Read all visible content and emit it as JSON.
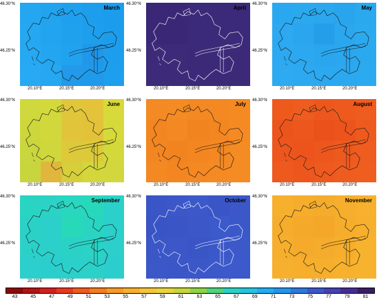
{
  "panels": [
    {
      "month": "March",
      "lat_labels": [
        "46.30°N",
        "46.25°N"
      ],
      "lon_labels": [
        "20.10°E",
        "20.15°E",
        "20.20°E"
      ],
      "base_color": "#22a5f0",
      "grid": [
        [
          "#24a6f1",
          "#22a3ef",
          "#1fa0ee",
          "#1d9eed",
          "#1b9cec"
        ],
        [
          "#25a8f2",
          "#23a4f0",
          "#20a1ee",
          "#1e9fed",
          "#1c9dec"
        ],
        [
          "#26a9f2",
          "#24a5f0",
          "#21a2ef",
          "#2097e8",
          "#1d9eed"
        ],
        [
          "#27aaf3",
          "#25a7f1",
          "#2299e9",
          "#1f9aea",
          "#1e9fee"
        ]
      ]
    },
    {
      "month": "April",
      "lat_labels": [
        "46.30°N",
        "46.25°N"
      ],
      "lon_labels": [
        "20.10°E",
        "20.15°E",
        "20.20°E"
      ],
      "base_color": "#3b2a78",
      "grid": [
        [
          "#3a2877",
          "#3a2877",
          "#3b2a79",
          "#3b2a79",
          "#3b2a79"
        ],
        [
          "#3a2877",
          "#3a2877",
          "#3b2a79",
          "#3b2a79",
          "#3b2a79"
        ],
        [
          "#3d2b7a",
          "#3d2b7a",
          "#3c2a79",
          "#3c2a79",
          "#3c2a79"
        ],
        [
          "#3d2b7a",
          "#3d2b7a",
          "#3c2a79",
          "#3c2a79",
          "#3c2a79"
        ]
      ]
    },
    {
      "month": "May",
      "lat_labels": [
        "46.30°N",
        "46.25°N"
      ],
      "lon_labels": [
        "20.10°E",
        "20.15°E",
        "20.20°E"
      ],
      "base_color": "#2aa7ee",
      "grid": [
        [
          "#2aa8ef",
          "#2ba9ef",
          "#2aa7ee",
          "#29a5ed",
          "#2ba9ef"
        ],
        [
          "#2ca9f0",
          "#2aa6ee",
          "#259ee9",
          "#2aa7ee",
          "#2caaf0"
        ],
        [
          "#2ca9f0",
          "#2ba8ef",
          "#2aa6ee",
          "#2aa7ee",
          "#2ba9ef"
        ],
        [
          "#2daaf0",
          "#2ca9f0",
          "#2ba8ef",
          "#2ba8ef",
          "#2caaf0"
        ]
      ]
    },
    {
      "month": "June",
      "lat_labels": [
        "46.30°N",
        "46.25°N"
      ],
      "lon_labels": [
        "20.10°E",
        "20.15°E",
        "20.20°E"
      ],
      "base_color": "#d6da3a",
      "grid": [
        [
          "#cfd83c",
          "#d3d93b",
          "#e0c63a",
          "#e4c23a",
          "#d8d93a"
        ],
        [
          "#cdd73c",
          "#d2d83c",
          "#e2c43a",
          "#e3c23a",
          "#d6d93a"
        ],
        [
          "#cad63d",
          "#d0d73c",
          "#ddc93a",
          "#dcca3a",
          "#d3d83b"
        ],
        [
          "#c8d53d",
          "#e0b73c",
          "#d6cf3b",
          "#d4d63b",
          "#d1d73c"
        ]
      ]
    },
    {
      "month": "July",
      "lat_labels": [
        "46.30°N",
        "46.25°N"
      ],
      "lon_labels": [
        "20.10°E",
        "20.15°E",
        "20.20°E"
      ],
      "base_color": "#f58a23",
      "grid": [
        [
          "#f48a23",
          "#f58b23",
          "#f48822",
          "#f48822",
          "#f58a23"
        ],
        [
          "#f38621",
          "#f48822",
          "#f28420",
          "#f38621",
          "#f58a23"
        ],
        [
          "#f38621",
          "#f28420",
          "#f38621",
          "#f48822",
          "#f58b23"
        ],
        [
          "#f48822",
          "#f38621",
          "#f48822",
          "#f58a23",
          "#f58b23"
        ]
      ]
    },
    {
      "month": "August",
      "lat_labels": [
        "46.30°N",
        "46.25°N"
      ],
      "lon_labels": [
        "20.10°E",
        "20.15°E",
        "20.20°E"
      ],
      "base_color": "#ee5a1e",
      "grid": [
        [
          "#ee5a1e",
          "#ef5c1f",
          "#ed571d",
          "#ee591e",
          "#ef5c1f"
        ],
        [
          "#ec541c",
          "#ed571d",
          "#eb511b",
          "#ec541c",
          "#ee5a1e"
        ],
        [
          "#ed561d",
          "#ec541c",
          "#ed571d",
          "#ee591e",
          "#ef5c1f"
        ],
        [
          "#ee591e",
          "#ed571d",
          "#ee5a1e",
          "#ef5c1f",
          "#ef5d1f"
        ]
      ]
    },
    {
      "month": "September",
      "lat_labels": [
        "46.30°N",
        "46.25°N"
      ],
      "lon_labels": [
        "20.10°E",
        "20.15°E",
        "20.20°E"
      ],
      "base_color": "#2ad1c6",
      "grid": [
        [
          "#29d4c2",
          "#2ad3c5",
          "#29d6bf",
          "#28d8bb",
          "#2bd1c8"
        ],
        [
          "#2ad2c6",
          "#2bd0ca",
          "#28d9b9",
          "#29d5c1",
          "#2bd0ca"
        ],
        [
          "#2bd1c9",
          "#2bd0ca",
          "#2ad2c6",
          "#2ad3c5",
          "#2ccfcc"
        ],
        [
          "#2ccfcc",
          "#2ccecd",
          "#2bd0ca",
          "#2bd1c8",
          "#2ccecd"
        ]
      ]
    },
    {
      "month": "October",
      "lat_labels": [
        "46.30°N",
        "46.25°N"
      ],
      "lon_labels": [
        "20.10°E",
        "20.15°E",
        "20.20°E"
      ],
      "base_color": "#3b57c8",
      "grid": [
        [
          "#3a55c6",
          "#3b57c8",
          "#3c59ca",
          "#3a55c6",
          "#3b57c8"
        ],
        [
          "#3954c5",
          "#3a55c6",
          "#3b57c8",
          "#3c5acb",
          "#3b58c9"
        ],
        [
          "#3a56c7",
          "#3b57c8",
          "#3a55c6",
          "#3b58c9",
          "#3c59ca"
        ],
        [
          "#3b57c8",
          "#3a56c7",
          "#3b57c8",
          "#3c59ca",
          "#3c5acb"
        ]
      ]
    },
    {
      "month": "November",
      "lat_labels": [
        "46.30°N",
        "46.25°N"
      ],
      "lon_labels": [
        "20.10°E",
        "20.15°E",
        "20.20°E"
      ],
      "base_color": "#f6ad2c",
      "grid": [
        [
          "#f7b02d",
          "#f6ad2c",
          "#f5ab2b",
          "#f6ae2c",
          "#f7b12d"
        ],
        [
          "#f6ad2c",
          "#f5a92a",
          "#f4a72a",
          "#f6ad2c",
          "#f7b02d"
        ],
        [
          "#f6ae2c",
          "#f5aa2b",
          "#f5ab2b",
          "#f6ae2c",
          "#f8b32e"
        ],
        [
          "#f7b02d",
          "#f6ae2c",
          "#f6af2d",
          "#f7b12d",
          "#f8b32e"
        ]
      ]
    }
  ],
  "colorbar": {
    "colors": [
      "#8b0a0a",
      "#b01414",
      "#cf2020",
      "#e63a1c",
      "#ef5a1e",
      "#f47c22",
      "#f69a28",
      "#f7b02d",
      "#f4c53a",
      "#e8d53c",
      "#c8d53d",
      "#8fd346",
      "#4fd37e",
      "#2ad0c4",
      "#26c3e0",
      "#23acef",
      "#2495ea",
      "#2e78d8",
      "#3b57c8",
      "#4541b0",
      "#452d90",
      "#3a1e64"
    ],
    "tick_labels": [
      "43",
      "45",
      "47",
      "49",
      "51",
      "53",
      "55",
      "57",
      "59",
      "61",
      "63",
      "65",
      "67",
      "69",
      "71",
      "73",
      "75",
      "77",
      "79",
      "81"
    ]
  }
}
